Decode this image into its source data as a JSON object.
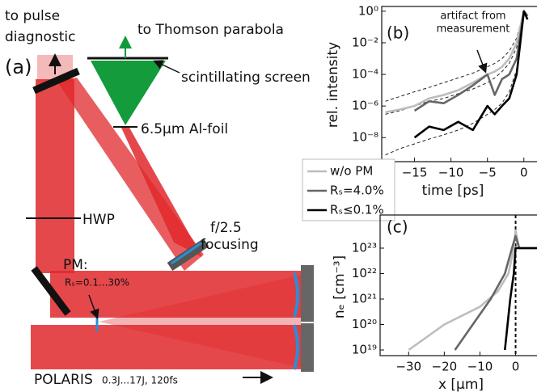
{
  "panel_a": {
    "label": "(a)",
    "pulse_diagnostic": [
      "to pulse",
      "diagnostic"
    ],
    "thomson": "to Thomson parabola",
    "screen": "scintillating screen",
    "foil": "6.5μm Al-foil",
    "hwp": "HWP",
    "focusing": [
      "f/2.5",
      "focusing"
    ],
    "pm": "PM:",
    "pm_reflectivity": "Rₛ=0.1...30%",
    "polaris": "POLARIS",
    "polaris_params": "0.3J...17J, 120fs"
  },
  "chart_data": [
    {
      "type": "line",
      "panel": "(b)",
      "y_label": "rel. intensity",
      "x_label": "time [ps]",
      "log_y": true,
      "annotation": [
        "artifact from",
        "measurement"
      ],
      "x": [
        -19,
        -17,
        -15,
        -13,
        -11,
        -9,
        -7,
        -5,
        -4,
        -3,
        -2,
        -1,
        0,
        0.5
      ],
      "xlim": [
        -19.5,
        1.8
      ],
      "xticks": [
        {
          "value": -15,
          "label": "−15"
        },
        {
          "value": -10,
          "label": "−10"
        },
        {
          "value": -5,
          "label": "−5"
        },
        0
      ],
      "ylim": [
        3e-10,
        2
      ],
      "yticks": [
        {
          "value": 1,
          "label": "10⁰"
        },
        {
          "value": 0.01,
          "label": "10⁻²"
        },
        {
          "value": 0.0001,
          "label": "10⁻⁴"
        },
        {
          "value": 1e-06,
          "label": "10⁻⁶"
        },
        {
          "value": 1e-08,
          "label": "10⁻⁸"
        }
      ],
      "series": [
        {
          "name": "w/o PM",
          "color": "#bdbdbd",
          "values": [
            4e-07,
            6e-07,
            1e-06,
            3e-06,
            5e-06,
            1e-05,
            3e-05,
            0.0001,
            0.00015,
            0.0003,
            0.001,
            0.01,
            1,
            0.5
          ]
        },
        {
          "name": "Rₛ=4.0%",
          "color": "#666666",
          "values": [
            null,
            null,
            5e-07,
            2e-06,
            1.5e-06,
            5e-06,
            2e-05,
            0.0001,
            5e-06,
            5e-05,
            0.0001,
            0.001,
            1,
            0.5
          ]
        },
        {
          "name": "Rₛ≤0.1%",
          "color": "#000000",
          "values": [
            null,
            null,
            1e-08,
            5e-08,
            3e-08,
            1e-07,
            3e-08,
            1e-06,
            3e-07,
            1e-06,
            3e-06,
            0.0001,
            1,
            0.3
          ]
        }
      ],
      "fits": [
        {
          "values": [
            2e-06,
            4e-06,
            8e-06,
            1.5e-05,
            3e-05,
            6e-05,
            0.00012,
            0.0003,
            0.0005,
            0.001,
            0.003,
            0.02,
            1,
            null
          ]
        },
        {
          "values": [
            3e-07,
            5e-07,
            1e-06,
            2e-06,
            3e-06,
            6e-06,
            1.2e-05,
            3e-05,
            6e-05,
            0.00015,
            0.0005,
            0.005,
            1,
            null
          ]
        },
        {
          "values": [
            8e-10,
            2e-09,
            4e-09,
            8e-09,
            1.5e-08,
            3e-08,
            8e-08,
            3e-07,
            6e-07,
            1.5e-06,
            8e-06,
            0.0002,
            1,
            null
          ]
        }
      ]
    },
    {
      "type": "line",
      "panel": "(c)",
      "y_label": "nₑ [cm⁻³]",
      "x_label": "x [μm]",
      "log_y": true,
      "xlim": [
        -38,
        6
      ],
      "xticks": [
        {
          "value": -30,
          "label": "−30"
        },
        {
          "value": -20,
          "label": "−20"
        },
        {
          "value": -10,
          "label": "−10"
        },
        0
      ],
      "ylim": [
        6e+18,
        2e+24
      ],
      "yticks": [
        {
          "value": 1e+23,
          "label": "10²³"
        },
        {
          "value": 1e+22,
          "label": "10²²"
        },
        {
          "value": 1e+21,
          "label": "10²¹"
        },
        {
          "value": 1e+20,
          "label": "10²⁰"
        },
        {
          "value": 1e+19,
          "label": "10¹⁹"
        }
      ],
      "vline_x": 0,
      "series": [
        {
          "color": "#bdbdbd",
          "x": [
            -30,
            -20,
            -10,
            -5,
            -2,
            -0.5,
            0,
            1,
            6
          ],
          "values": [
            1e+19,
            1e+20,
            5e+20,
            2e+21,
            1e+22,
            1e+23,
            5e+23,
            1e+23,
            1e+23
          ]
        },
        {
          "color": "#666666",
          "x": [
            -17,
            -12,
            -7,
            -3,
            -1,
            0,
            1,
            6
          ],
          "values": [
            1e+19,
            1e+20,
            1e+21,
            1e+22,
            1e+23,
            3e+23,
            1e+23,
            1e+23
          ]
        },
        {
          "color": "#000000",
          "x": [
            -3,
            -1.5,
            -0.5,
            0,
            6
          ],
          "values": [
            1e+19,
            1e+21,
            1e+22,
            1e+23,
            1e+23
          ]
        }
      ]
    }
  ]
}
